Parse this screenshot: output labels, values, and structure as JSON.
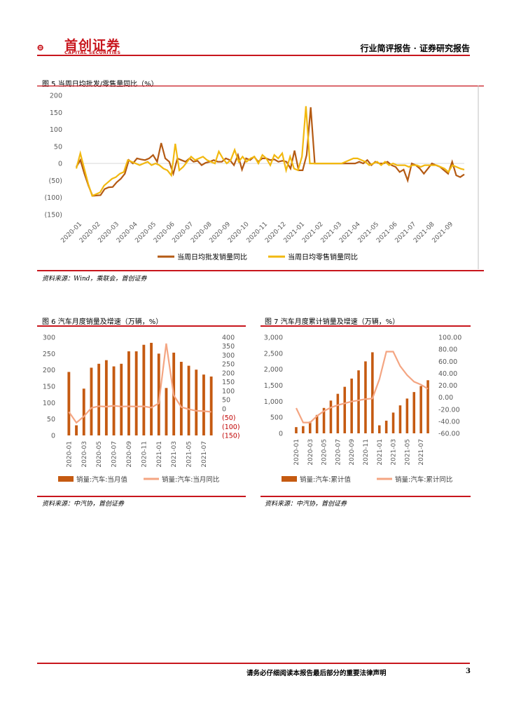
{
  "header": {
    "logo_cn": "首创证券",
    "logo_en": "CAPITAL SECURITIES",
    "title": "行业简评报告 · 证券研究报告",
    "brand_color": "#c8161d"
  },
  "fig5": {
    "caption": "图 5 当周日均批发/零售量同比（%）",
    "source": "资料来源：Wind，乘联会，首创证券",
    "chart_data": {
      "type": "line",
      "title": "",
      "ylim": [
        -150,
        200
      ],
      "yticks": [
        "200",
        "150",
        "100",
        "50",
        "0",
        "(50)",
        "(100)",
        "(150)"
      ],
      "x_ticks": [
        "2020-01",
        "2020-02",
        "2020-03",
        "2020-04",
        "2020-05",
        "2020-06",
        "2020-07",
        "2020-08",
        "2020-09",
        "2020-10",
        "2020-11",
        "2020-12",
        "2021-01",
        "2021-02",
        "2021-03",
        "2021-04",
        "2021-05",
        "2021-06",
        "2021-07",
        "2021-08",
        "2021-09"
      ],
      "series": [
        {
          "name": "当周日均批发销量同比",
          "color": "#b45a13",
          "values": [
            -10,
            10,
            -30,
            -65,
            -95,
            -94,
            -93,
            -75,
            -70,
            -69,
            -55,
            -45,
            -30,
            10,
            0,
            15,
            12,
            10,
            15,
            25,
            5,
            60,
            15,
            5,
            -30,
            15,
            10,
            5,
            15,
            5,
            8,
            -5,
            2,
            5,
            10,
            5,
            5,
            15,
            10,
            -5,
            25,
            -18,
            15,
            10,
            20,
            5,
            15,
            15,
            10,
            12,
            5,
            8,
            5,
            -15,
            38,
            -20,
            -20,
            25,
            165,
            0,
            0,
            0,
            0,
            0,
            0,
            0,
            0,
            0,
            0,
            0,
            5,
            0,
            10,
            -5,
            5,
            0,
            0,
            5,
            -5,
            -10,
            -25,
            -18,
            -50,
            0,
            -5,
            -15,
            -30,
            -15,
            0,
            -5,
            -10,
            -20,
            -30,
            5,
            -35,
            -40,
            -32
          ]
        },
        {
          "name": "当周日均零售销量同比",
          "color": "#f2b80f",
          "values": [
            -15,
            30,
            -15,
            -60,
            -95,
            -90,
            -85,
            -65,
            -55,
            -45,
            -40,
            -30,
            -25,
            10,
            5,
            0,
            -5,
            0,
            5,
            -5,
            0,
            -5,
            -15,
            -20,
            -35,
            58,
            -20,
            -10,
            5,
            20,
            10,
            15,
            20,
            10,
            5,
            0,
            35,
            15,
            0,
            10,
            40,
            5,
            20,
            5,
            15,
            20,
            0,
            25,
            15,
            -5,
            25,
            15,
            30,
            -20,
            20,
            -15,
            -20,
            20,
            168,
            0,
            0,
            0,
            0,
            0,
            0,
            0,
            0,
            0,
            5,
            10,
            15,
            15,
            10,
            5,
            -5,
            0,
            5,
            -5,
            5,
            -5,
            0,
            -5,
            -5,
            -5,
            -10,
            -5,
            -5,
            -10,
            -5,
            -5,
            -5,
            -5,
            -10,
            -15,
            -25,
            -5,
            -10,
            -15,
            -18
          ]
        }
      ],
      "legend_position": "bottom"
    }
  },
  "fig6": {
    "caption": "图 6 汽车月度销量及增速（万辆，%）",
    "source": "资料来源：中汽协，首创证券",
    "chart_data": {
      "type": "bar",
      "categories": [
        "2020-01",
        "2020-02",
        "2020-03",
        "2020-04",
        "2020-05",
        "2020-06",
        "2020-07",
        "2020-08",
        "2020-09",
        "2020-10",
        "2020-11",
        "2020-12",
        "2021-01",
        "2021-02",
        "2021-03",
        "2021-04",
        "2021-05",
        "2021-06",
        "2021-07",
        "2021-08"
      ],
      "x_ticks": [
        "2020-01",
        "2020-03",
        "2020-05",
        "2020-07",
        "2020-09",
        "2020-11",
        "2021-01",
        "2021-03",
        "2021-05",
        "2021-07"
      ],
      "ylim_left": [
        0,
        300
      ],
      "yticks_left": [
        "300",
        "250",
        "200",
        "150",
        "100",
        "50",
        "0"
      ],
      "ylim_right": [
        -150,
        400
      ],
      "yticks_right": [
        "400",
        "350",
        "300",
        "250",
        "200",
        "150",
        "100",
        "50",
        "0",
        "(50)",
        "(100)",
        "(150)"
      ],
      "series": [
        {
          "name": "销量:汽车:当月值",
          "axis": "left",
          "type": "bar",
          "color": "#c55a11",
          "values": [
            194,
            31,
            143,
            207,
            219,
            230,
            211,
            219,
            257,
            257,
            277,
            283,
            250,
            145,
            253,
            225,
            213,
            201,
            186,
            180
          ]
        },
        {
          "name": "销量:汽车:当月同比",
          "axis": "right",
          "type": "line",
          "color": "#f4a582",
          "values": [
            -18,
            -79,
            -43,
            4,
            14,
            11,
            16,
            12,
            13,
            12,
            13,
            6,
            30,
            365,
            75,
            9,
            -3,
            -12,
            -14,
            -18
          ]
        }
      ],
      "legend_position": "bottom"
    }
  },
  "fig7": {
    "caption": "图 7 汽车月度累计销量及增速（万辆，%）",
    "source": "资料来源：中汽协，首创证券",
    "chart_data": {
      "type": "bar",
      "categories": [
        "2020-01",
        "2020-02",
        "2020-03",
        "2020-04",
        "2020-05",
        "2020-06",
        "2020-07",
        "2020-08",
        "2020-09",
        "2020-10",
        "2020-11",
        "2020-12",
        "2021-01",
        "2021-02",
        "2021-03",
        "2021-04",
        "2021-05",
        "2021-06",
        "2021-07",
        "2021-08"
      ],
      "x_ticks": [
        "2020-01",
        "2020-03",
        "2020-05",
        "2020-07",
        "2020-09",
        "2020-11",
        "2021-01",
        "2021-03",
        "2021-05",
        "2021-07"
      ],
      "ylim_left": [
        0,
        3000
      ],
      "yticks_left": [
        "3,000",
        "2,500",
        "2,000",
        "1,500",
        "1,000",
        "500",
        "0"
      ],
      "ylim_right": [
        -60,
        100
      ],
      "yticks_right": [
        "100.00",
        "80.00",
        "60.00",
        "40.00",
        "20.00",
        "0.00",
        "-20.00",
        "-40.00",
        "-60.00"
      ],
      "series": [
        {
          "name": "销量:汽车:累计值",
          "axis": "left",
          "type": "bar",
          "color": "#c55a11",
          "values": [
            194,
            225,
            367,
            574,
            793,
            1023,
            1234,
            1453,
            1710,
            1967,
            2247,
            2531,
            250,
            395,
            648,
            873,
            1086,
            1289,
            1478,
            1658
          ]
        },
        {
          "name": "销量:汽车:累计同比",
          "axis": "right",
          "type": "line",
          "color": "#f4a582",
          "values": [
            -18,
            -42,
            -42,
            -31,
            -23,
            -17,
            -13,
            -10,
            -7,
            -5,
            -3,
            -2,
            30,
            76,
            76,
            52,
            37,
            26,
            21,
            14
          ]
        }
      ],
      "legend_position": "bottom"
    }
  },
  "footer": {
    "disclaimer": "请务必仔细阅读本报告最后部分的重要法律声明",
    "page": "3"
  }
}
